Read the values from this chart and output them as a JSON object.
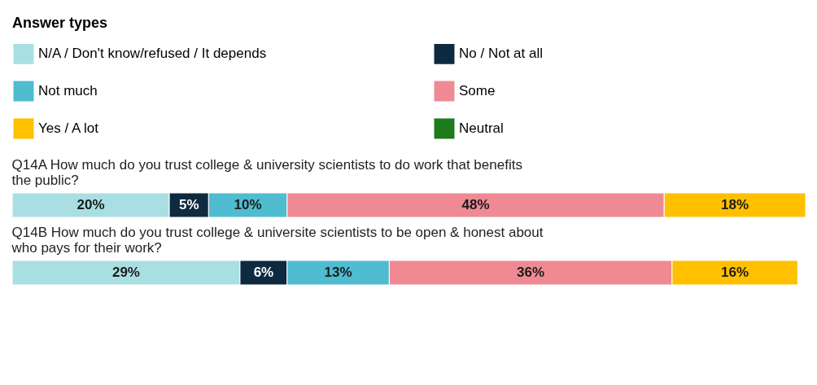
{
  "chart_data": {
    "type": "bar",
    "orientation": "horizontal",
    "stacked": true,
    "legend": "top",
    "legend_title": "Answer types",
    "categories": [
      "Q14A How much do you trust college & university scientists to do work that benefits the public?",
      "Q14B How much do you trust college & universite scientists to be open & honest about who pays for their work?"
    ],
    "series": [
      {
        "name": "N/A / Don't know/refused / It depends",
        "color": "#a9dfe2",
        "values": [
          20,
          29
        ],
        "value_labels": [
          "20%",
          "29%"
        ]
      },
      {
        "name": "No / Not at all",
        "color": "#0d2a40",
        "values": [
          5,
          6
        ],
        "value_labels": [
          "5%",
          "6%"
        ]
      },
      {
        "name": "Not much",
        "color": "#4fbccf",
        "values": [
          10,
          13
        ],
        "value_labels": [
          "10%",
          "13%"
        ]
      },
      {
        "name": "Some",
        "color": "#ef8a94",
        "values": [
          48,
          36
        ],
        "value_labels": [
          "48%",
          "36%"
        ]
      },
      {
        "name": "Yes / A lot",
        "color": "#ffc000",
        "values": [
          18,
          16
        ],
        "value_labels": [
          "18%",
          "16%"
        ]
      },
      {
        "name": "Neutral",
        "color": "#1d7a1d",
        "values": [
          null,
          null
        ]
      }
    ]
  }
}
